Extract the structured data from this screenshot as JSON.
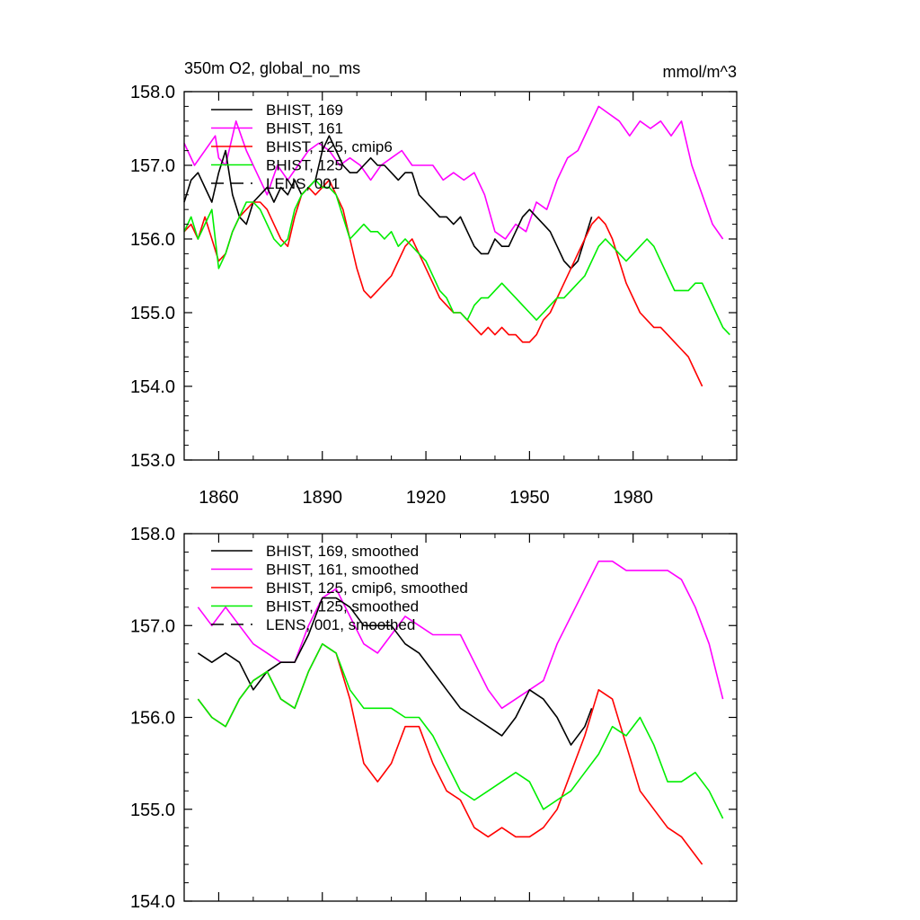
{
  "colors": {
    "black": "#000000",
    "magenta": "#ff00ff",
    "red": "#ff0000",
    "green": "#00ee00"
  },
  "chart_data": [
    {
      "type": "line",
      "title": "350m O2, global_no_ms",
      "units": "mmol/m^3",
      "xlim": [
        1850,
        2010
      ],
      "ylim": [
        153.0,
        158.0
      ],
      "x_ticks": [
        1860,
        1890,
        1920,
        1950,
        1980
      ],
      "y_ticks": [
        "153.0",
        "154.0",
        "155.0",
        "156.0",
        "157.0",
        "158.0"
      ],
      "legend": [
        {
          "label": "BHIST, 169",
          "color": "#000000",
          "dash": "solid"
        },
        {
          "label": "BHIST, 161",
          "color": "#ff00ff",
          "dash": "solid"
        },
        {
          "label": "BHIST, 125, cmip6",
          "color": "#ff0000",
          "dash": "solid"
        },
        {
          "label": "BHIST, 125",
          "color": "#00ee00",
          "dash": "solid"
        },
        {
          "label": "LENS, 001",
          "color": "#000000",
          "dash": "dashed"
        }
      ],
      "series": [
        {
          "name": "BHIST, 161",
          "color": "#ff00ff",
          "x": [
            1850,
            1853,
            1856,
            1859,
            1860,
            1862,
            1865,
            1868,
            1871,
            1874,
            1877,
            1880,
            1883,
            1886,
            1889,
            1892,
            1895,
            1898,
            1901,
            1904,
            1907,
            1910,
            1913,
            1916,
            1919,
            1922,
            1925,
            1928,
            1931,
            1934,
            1937,
            1940,
            1943,
            1946,
            1949,
            1952,
            1955,
            1958,
            1961,
            1964,
            1967,
            1970,
            1973,
            1976,
            1979,
            1982,
            1985,
            1988,
            1991,
            1994,
            1997,
            2000,
            2003,
            2006
          ],
          "y": [
            157.3,
            157.0,
            157.2,
            157.4,
            157.1,
            157.0,
            157.6,
            157.2,
            156.9,
            156.6,
            157.0,
            156.8,
            157.0,
            157.2,
            157.3,
            157.2,
            157.0,
            157.1,
            157.0,
            156.8,
            157.0,
            157.1,
            157.2,
            157.0,
            157.0,
            157.0,
            156.8,
            156.9,
            156.8,
            156.9,
            156.6,
            156.1,
            156.0,
            156.2,
            156.1,
            156.5,
            156.4,
            156.8,
            157.1,
            157.2,
            157.5,
            157.8,
            157.7,
            157.6,
            157.4,
            157.6,
            157.5,
            157.6,
            157.4,
            157.6,
            157.0,
            156.6,
            156.2,
            156.0
          ]
        },
        {
          "name": "BHIST, 169",
          "color": "#000000",
          "x": [
            1850,
            1852,
            1854,
            1856,
            1858,
            1860,
            1862,
            1864,
            1866,
            1868,
            1870,
            1872,
            1874,
            1876,
            1878,
            1880,
            1882,
            1884,
            1886,
            1888,
            1890,
            1892,
            1894,
            1896,
            1898,
            1900,
            1902,
            1904,
            1906,
            1908,
            1910,
            1912,
            1914,
            1916,
            1918,
            1920,
            1922,
            1924,
            1926,
            1928,
            1930,
            1932,
            1934,
            1936,
            1938,
            1940,
            1942,
            1944,
            1946,
            1948,
            1950,
            1952,
            1954,
            1956,
            1958,
            1960,
            1962,
            1964,
            1966,
            1968
          ],
          "y": [
            156.5,
            156.8,
            156.9,
            156.7,
            156.5,
            156.9,
            157.2,
            156.6,
            156.3,
            156.2,
            156.5,
            156.6,
            156.7,
            156.5,
            156.7,
            156.6,
            156.8,
            156.6,
            156.7,
            156.8,
            157.2,
            157.4,
            157.2,
            157.0,
            156.9,
            156.9,
            157.0,
            157.1,
            157.0,
            157.0,
            156.9,
            156.8,
            156.9,
            156.9,
            156.6,
            156.5,
            156.4,
            156.3,
            156.3,
            156.2,
            156.3,
            156.1,
            155.9,
            155.8,
            155.8,
            156.0,
            155.9,
            155.9,
            156.1,
            156.3,
            156.4,
            156.3,
            156.2,
            156.1,
            155.9,
            155.7,
            155.6,
            155.7,
            156.0,
            156.3
          ]
        },
        {
          "name": "BHIST, 125, cmip6",
          "color": "#ff0000",
          "x": [
            1850,
            1852,
            1854,
            1856,
            1858,
            1860,
            1862,
            1864,
            1866,
            1868,
            1870,
            1872,
            1874,
            1876,
            1878,
            1880,
            1882,
            1884,
            1886,
            1888,
            1890,
            1892,
            1894,
            1896,
            1898,
            1900,
            1902,
            1904,
            1906,
            1908,
            1910,
            1912,
            1914,
            1916,
            1918,
            1920,
            1922,
            1924,
            1926,
            1928,
            1930,
            1932,
            1934,
            1936,
            1938,
            1940,
            1942,
            1944,
            1946,
            1948,
            1950,
            1952,
            1954,
            1956,
            1958,
            1960,
            1962,
            1964,
            1966,
            1968,
            1970,
            1972,
            1974,
            1976,
            1978,
            1980,
            1982,
            1984,
            1986,
            1988,
            1990,
            1992,
            1994,
            1996,
            1998,
            2000
          ],
          "y": [
            156.1,
            156.2,
            156.0,
            156.3,
            156.0,
            155.7,
            155.8,
            156.1,
            156.3,
            156.4,
            156.5,
            156.5,
            156.4,
            156.2,
            156.0,
            155.9,
            156.3,
            156.6,
            156.7,
            156.6,
            156.7,
            156.8,
            156.6,
            156.4,
            156.0,
            155.6,
            155.3,
            155.2,
            155.3,
            155.4,
            155.5,
            155.7,
            155.9,
            156.0,
            155.8,
            155.6,
            155.4,
            155.2,
            155.1,
            155.0,
            155.0,
            154.9,
            154.8,
            154.7,
            154.8,
            154.7,
            154.8,
            154.7,
            154.7,
            154.6,
            154.6,
            154.7,
            154.9,
            155.0,
            155.2,
            155.4,
            155.6,
            155.8,
            156.0,
            156.2,
            156.3,
            156.2,
            156.0,
            155.7,
            155.4,
            155.2,
            155.0,
            154.9,
            154.8,
            154.8,
            154.7,
            154.6,
            154.5,
            154.4,
            154.2,
            154.0
          ]
        },
        {
          "name": "BHIST, 125",
          "color": "#00ee00",
          "x": [
            1850,
            1852,
            1854,
            1856,
            1858,
            1860,
            1862,
            1864,
            1866,
            1868,
            1870,
            1872,
            1874,
            1876,
            1878,
            1880,
            1882,
            1884,
            1886,
            1888,
            1890,
            1892,
            1894,
            1896,
            1898,
            1900,
            1902,
            1904,
            1906,
            1908,
            1910,
            1912,
            1914,
            1916,
            1918,
            1920,
            1922,
            1924,
            1926,
            1928,
            1930,
            1932,
            1934,
            1936,
            1938,
            1940,
            1942,
            1944,
            1946,
            1948,
            1950,
            1952,
            1954,
            1956,
            1958,
            1960,
            1962,
            1964,
            1966,
            1968,
            1970,
            1972,
            1974,
            1976,
            1978,
            1980,
            1982,
            1984,
            1986,
            1988,
            1990,
            1992,
            1994,
            1996,
            1998,
            2000,
            2002,
            2004,
            2006,
            2008
          ],
          "y": [
            156.1,
            156.3,
            156.0,
            156.2,
            156.4,
            155.6,
            155.8,
            156.1,
            156.3,
            156.5,
            156.5,
            156.4,
            156.2,
            156.0,
            155.9,
            156.0,
            156.4,
            156.6,
            156.7,
            156.8,
            156.7,
            156.7,
            156.6,
            156.3,
            156.0,
            156.1,
            156.2,
            156.1,
            156.1,
            156.0,
            156.1,
            155.9,
            156.0,
            155.9,
            155.8,
            155.7,
            155.5,
            155.3,
            155.2,
            155.0,
            155.0,
            154.9,
            155.1,
            155.2,
            155.2,
            155.3,
            155.4,
            155.3,
            155.2,
            155.1,
            155.0,
            154.9,
            155.0,
            155.1,
            155.2,
            155.2,
            155.3,
            155.4,
            155.5,
            155.7,
            155.9,
            156.0,
            155.9,
            155.8,
            155.7,
            155.8,
            155.9,
            156.0,
            155.9,
            155.7,
            155.5,
            155.3,
            155.3,
            155.3,
            155.4,
            155.4,
            155.2,
            155.0,
            154.8,
            154.7
          ]
        }
      ]
    },
    {
      "type": "line",
      "xlim": [
        1850,
        2010
      ],
      "ylim": [
        154.0,
        158.0
      ],
      "y_ticks": [
        "154.0",
        "155.0",
        "156.0",
        "157.0",
        "158.0"
      ],
      "legend": [
        {
          "label": "BHIST, 169, smoothed",
          "color": "#000000",
          "dash": "solid"
        },
        {
          "label": "BHIST, 161, smoothed",
          "color": "#ff00ff",
          "dash": "solid"
        },
        {
          "label": "BHIST, 125, cmip6, smoothed",
          "color": "#ff0000",
          "dash": "solid"
        },
        {
          "label": "BHIST, 125, smoothed",
          "color": "#00ee00",
          "dash": "solid"
        },
        {
          "label": "LENS, 001, smoothed",
          "color": "#000000",
          "dash": "dashed"
        }
      ],
      "series": [
        {
          "name": "BHIST, 161, smoothed",
          "color": "#ff00ff",
          "x": [
            1854,
            1858,
            1862,
            1866,
            1870,
            1874,
            1878,
            1882,
            1886,
            1890,
            1894,
            1898,
            1902,
            1906,
            1910,
            1914,
            1918,
            1922,
            1926,
            1930,
            1934,
            1938,
            1942,
            1946,
            1950,
            1954,
            1958,
            1962,
            1966,
            1970,
            1974,
            1978,
            1982,
            1986,
            1990,
            1994,
            1998,
            2002,
            2006
          ],
          "y": [
            157.2,
            157.0,
            157.2,
            157.0,
            156.8,
            156.7,
            156.6,
            156.6,
            157.0,
            157.3,
            157.4,
            157.1,
            156.8,
            156.7,
            156.9,
            157.1,
            157.0,
            156.9,
            156.9,
            156.9,
            156.6,
            156.3,
            156.1,
            156.2,
            156.3,
            156.4,
            156.8,
            157.1,
            157.4,
            157.7,
            157.7,
            157.6,
            157.6,
            157.6,
            157.6,
            157.5,
            157.2,
            156.8,
            156.2
          ]
        },
        {
          "name": "BHIST, 169, smoothed",
          "color": "#000000",
          "x": [
            1854,
            1858,
            1862,
            1866,
            1870,
            1874,
            1878,
            1882,
            1886,
            1890,
            1894,
            1898,
            1902,
            1906,
            1910,
            1914,
            1918,
            1922,
            1926,
            1930,
            1934,
            1938,
            1942,
            1946,
            1950,
            1954,
            1958,
            1962,
            1966,
            1968
          ],
          "y": [
            156.7,
            156.6,
            156.7,
            156.6,
            156.3,
            156.5,
            156.6,
            156.6,
            156.9,
            157.3,
            157.3,
            157.2,
            157.0,
            157.0,
            157.0,
            156.8,
            156.7,
            156.5,
            156.3,
            156.1,
            156.0,
            155.9,
            155.8,
            156.0,
            156.3,
            156.2,
            156.0,
            155.7,
            155.9,
            156.1
          ]
        },
        {
          "name": "BHIST, 125, cmip6, smoothed",
          "color": "#ff0000",
          "x": [
            1854,
            1858,
            1862,
            1866,
            1870,
            1874,
            1878,
            1882,
            1886,
            1890,
            1894,
            1898,
            1902,
            1906,
            1910,
            1914,
            1918,
            1922,
            1926,
            1930,
            1934,
            1938,
            1942,
            1946,
            1950,
            1954,
            1958,
            1962,
            1966,
            1970,
            1974,
            1978,
            1982,
            1986,
            1990,
            1994,
            1998,
            2000
          ],
          "y": [
            156.2,
            156.0,
            155.9,
            156.2,
            156.4,
            156.5,
            156.2,
            156.1,
            156.5,
            156.8,
            156.7,
            156.2,
            155.5,
            155.3,
            155.5,
            155.9,
            155.9,
            155.5,
            155.2,
            155.1,
            154.8,
            154.7,
            154.8,
            154.7,
            154.7,
            154.8,
            155.0,
            155.4,
            155.8,
            156.3,
            156.2,
            155.7,
            155.2,
            155.0,
            154.8,
            154.7,
            154.5,
            154.4
          ]
        },
        {
          "name": "BHIST, 125, smoothed",
          "color": "#00ee00",
          "x": [
            1854,
            1858,
            1862,
            1866,
            1870,
            1874,
            1878,
            1882,
            1886,
            1890,
            1894,
            1898,
            1902,
            1906,
            1910,
            1914,
            1918,
            1922,
            1926,
            1930,
            1934,
            1938,
            1942,
            1946,
            1950,
            1954,
            1958,
            1962,
            1966,
            1970,
            1974,
            1978,
            1982,
            1986,
            1990,
            1994,
            1998,
            2002,
            2006
          ],
          "y": [
            156.2,
            156.0,
            155.9,
            156.2,
            156.4,
            156.5,
            156.2,
            156.1,
            156.5,
            156.8,
            156.7,
            156.3,
            156.1,
            156.1,
            156.1,
            156.0,
            156.0,
            155.8,
            155.5,
            155.2,
            155.1,
            155.2,
            155.3,
            155.4,
            155.3,
            155.0,
            155.1,
            155.2,
            155.4,
            155.6,
            155.9,
            155.8,
            156.0,
            155.7,
            155.3,
            155.3,
            155.4,
            155.2,
            154.9
          ]
        }
      ]
    }
  ]
}
